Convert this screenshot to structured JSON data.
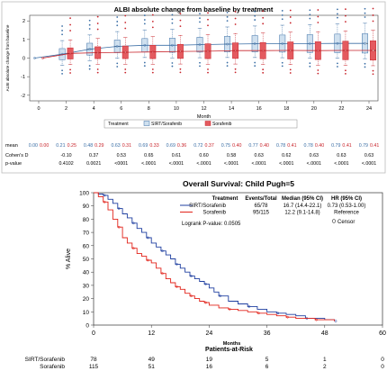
{
  "chart_data": [
    {
      "type": "box",
      "title": "ALBI absolute change from baseline by treatment",
      "ylabel": "ALBI absolute change from baseline",
      "xlabel": "Month",
      "categories": [
        "0",
        "2",
        "4",
        "6",
        "8",
        "10",
        "12",
        "14",
        "16",
        "18",
        "20",
        "22",
        "24"
      ],
      "ylim": [
        -2.3,
        2.3
      ],
      "yticks": [
        "-2",
        "-1",
        "0",
        "1",
        "2"
      ],
      "legend": {
        "position": "bottom",
        "treatment_label": "Treatment"
      },
      "series": [
        {
          "name": "SIRT/Sorafenib",
          "color": "#3a6ea5",
          "means": [
            0.0,
            0.21,
            0.48,
            0.63,
            0.69,
            0.69,
            0.72,
            0.75,
            0.77,
            0.78,
            0.78,
            0.79,
            0.79
          ]
        },
        {
          "name": "Sorafenib",
          "color": "#c8242b",
          "means": [
            0.0,
            0.25,
            0.29,
            0.31,
            0.33,
            0.36,
            0.37,
            0.4,
            0.4,
            0.41,
            0.4,
            0.41,
            0.41
          ]
        }
      ],
      "table": {
        "mean_label": "mean",
        "cohen_label": "Cohen's D",
        "p_label": "p-value",
        "cohens_d": [
          "",
          "-0.10",
          "0.37",
          "0.53",
          "0.65",
          "0.61",
          "0.60",
          "0.58",
          "0.63",
          "0.62",
          "0.63",
          "0.63",
          "0.63"
        ],
        "p_values": [
          "",
          "0.4102",
          "0.0021",
          "<0001",
          "<.0001",
          "<.0001",
          "<.0001",
          "<.0001",
          "<.0001",
          "<.0001",
          "<.0001",
          "<.0001",
          "<.0001"
        ]
      }
    },
    {
      "type": "line",
      "title": "Overall Survival: Child Pugh=5",
      "ylabel": "% Alive",
      "xlabel": "Months",
      "xlim": [
        0,
        60
      ],
      "ylim": [
        0,
        100
      ],
      "xticks": [
        "0",
        "12",
        "24",
        "36",
        "48",
        "60"
      ],
      "yticks": [
        "0",
        "10",
        "20",
        "30",
        "40",
        "50",
        "60",
        "70",
        "80",
        "90",
        "100"
      ],
      "legend": {
        "position": "top-right",
        "headers": [
          "Treatment",
          "Events/Total",
          "Median (95% CI)",
          "HR (95% CI)"
        ],
        "rows": [
          {
            "name": "SIRT/Sorafenib",
            "events": "65/78",
            "median": "16.7 (14.4-22.1)",
            "hr": "0.73 (0.53-1.00)"
          },
          {
            "name": "Sorafenib",
            "events": "95/115",
            "median": "12.2 (9.1-14.8)",
            "hr": "Reference"
          }
        ],
        "logrank": "Logrank P-value: 0.0505",
        "censor_label": "Censor"
      },
      "series": [
        {
          "name": "SIRT/Sorafenib",
          "color": "#1f3fa0",
          "x": [
            0,
            1,
            2,
            3,
            4,
            5,
            6,
            7,
            8,
            9,
            10,
            11,
            12,
            13,
            14,
            15,
            16,
            17,
            18,
            19,
            20,
            21,
            22,
            23,
            24,
            25,
            26,
            28,
            30,
            32,
            34,
            36,
            38,
            40,
            42,
            44,
            46,
            48,
            50
          ],
          "y": [
            100,
            99,
            98,
            95,
            92,
            88,
            84,
            81,
            77,
            73,
            70,
            66,
            62,
            59,
            56,
            53,
            50,
            46,
            43,
            40,
            37,
            35,
            33,
            31,
            28,
            25,
            22,
            18,
            16,
            14,
            12,
            10,
            9,
            8,
            7,
            5,
            5,
            4,
            3
          ]
        },
        {
          "name": "Sorafenib",
          "color": "#e2231a",
          "x": [
            0,
            1,
            2,
            3,
            4,
            5,
            6,
            7,
            8,
            9,
            10,
            11,
            12,
            13,
            14,
            15,
            16,
            17,
            18,
            19,
            20,
            21,
            22,
            23,
            24,
            26,
            28,
            30,
            32,
            34,
            36,
            38,
            40,
            42,
            44,
            46,
            48,
            50
          ],
          "y": [
            100,
            97,
            93,
            87,
            80,
            74,
            66,
            62,
            58,
            54,
            52,
            49,
            47,
            43,
            39,
            35,
            32,
            29,
            27,
            24,
            22,
            20,
            18,
            17,
            15,
            13,
            12,
            11,
            10,
            9,
            8,
            7,
            6,
            5,
            5,
            4,
            4,
            3
          ]
        }
      ],
      "at_risk": {
        "title": "Patients-at-Risk",
        "rows": [
          {
            "name": "SIRT/Sorafenib",
            "values": [
              "78",
              "49",
              "19",
              "5",
              "1",
              "0"
            ]
          },
          {
            "name": "Sorafenib",
            "values": [
              "115",
              "51",
              "16",
              "6",
              "2",
              "0"
            ]
          }
        ]
      }
    }
  ]
}
